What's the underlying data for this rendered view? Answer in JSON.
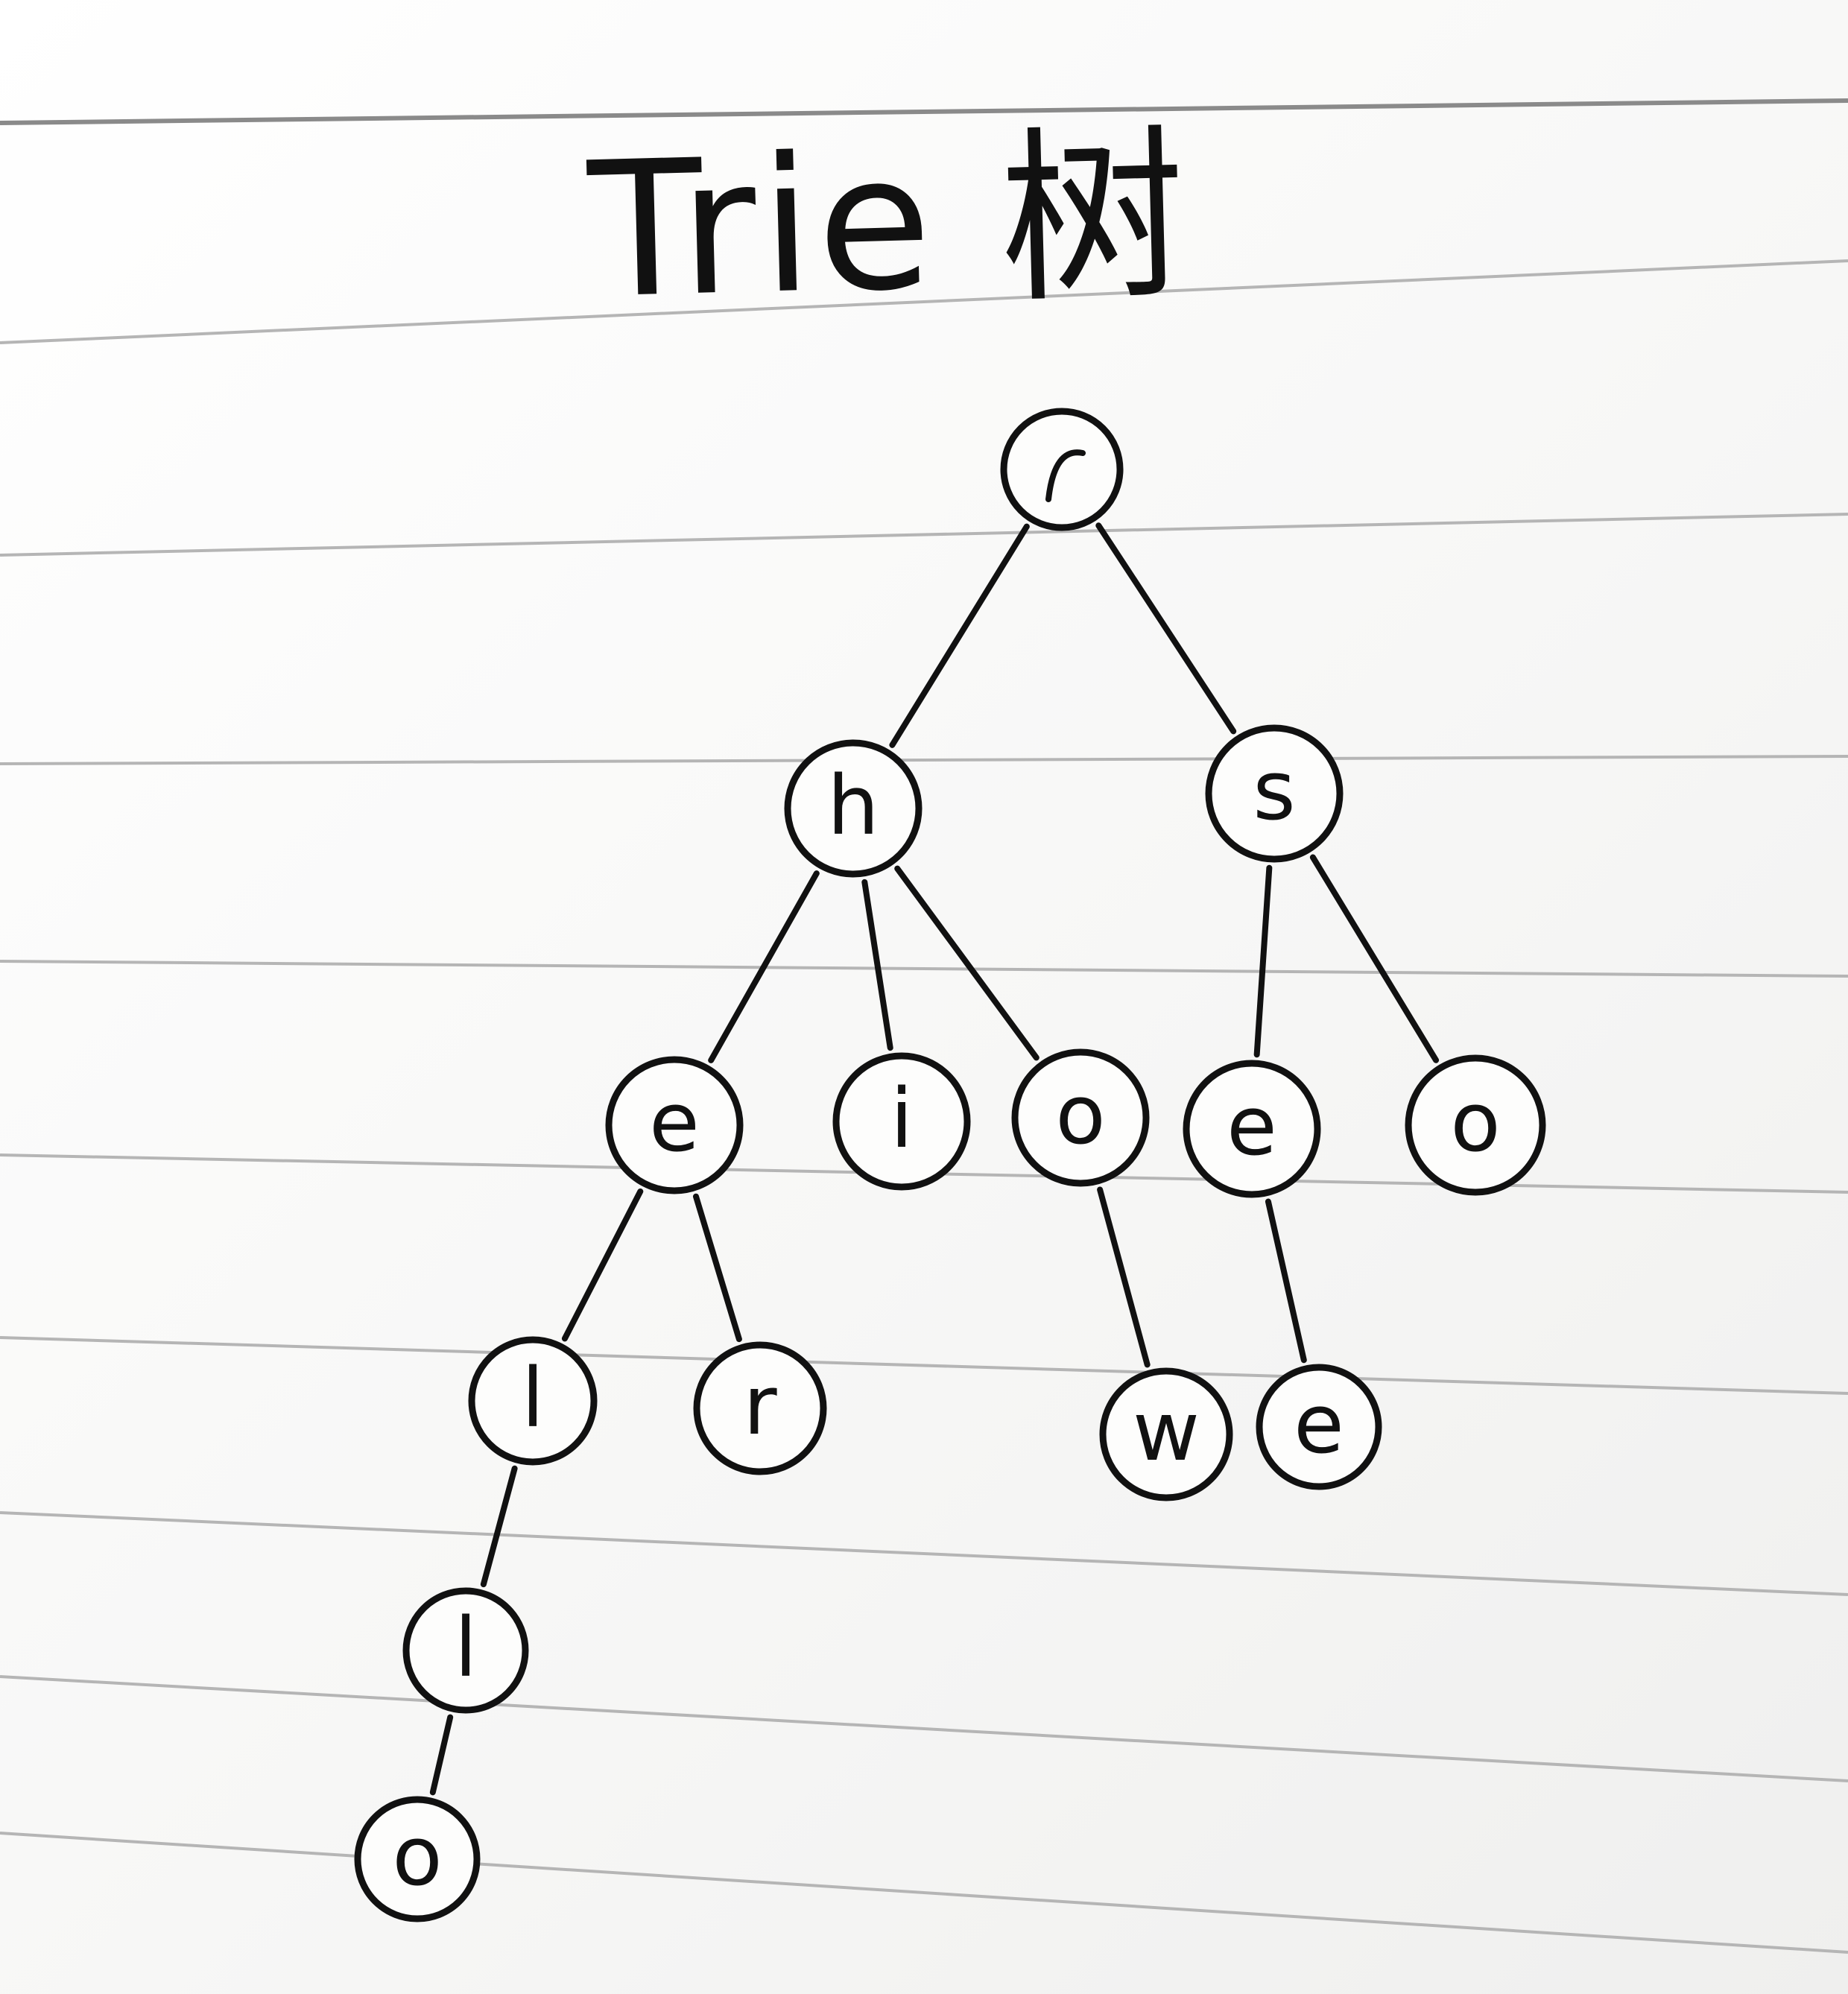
{
  "title": "Trie 树",
  "tree": {
    "nodes": [
      {
        "id": "root",
        "label": ""
      },
      {
        "id": "h",
        "label": "h"
      },
      {
        "id": "s",
        "label": "s"
      },
      {
        "id": "he",
        "label": "e"
      },
      {
        "id": "hi",
        "label": "i"
      },
      {
        "id": "ho",
        "label": "o"
      },
      {
        "id": "se",
        "label": "e"
      },
      {
        "id": "so",
        "label": "o"
      },
      {
        "id": "hel",
        "label": "l"
      },
      {
        "id": "her",
        "label": "r"
      },
      {
        "id": "how",
        "label": "w"
      },
      {
        "id": "see",
        "label": "e"
      },
      {
        "id": "hell",
        "label": "l"
      },
      {
        "id": "hello",
        "label": "o"
      }
    ],
    "edges": [
      [
        "root",
        "h"
      ],
      [
        "root",
        "s"
      ],
      [
        "h",
        "he"
      ],
      [
        "h",
        "hi"
      ],
      [
        "h",
        "ho"
      ],
      [
        "s",
        "se"
      ],
      [
        "s",
        "so"
      ],
      [
        "he",
        "hel"
      ],
      [
        "he",
        "her"
      ],
      [
        "ho",
        "how"
      ],
      [
        "se",
        "see"
      ],
      [
        "hel",
        "hell"
      ],
      [
        "hell",
        "hello"
      ]
    ]
  }
}
